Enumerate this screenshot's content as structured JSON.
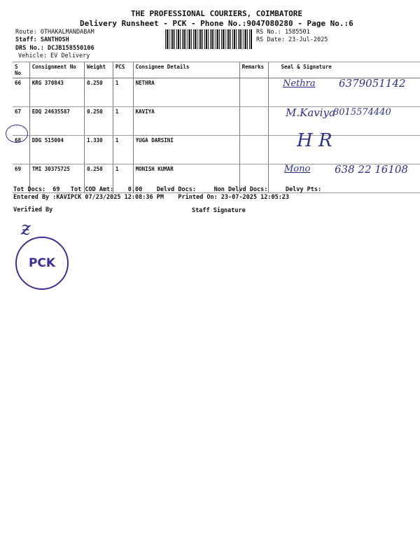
{
  "header": {
    "company": "THE PROFESSIONAL COURIERS, COIMBATORE",
    "title": "Delivery Runsheet - PCK - Phone No.:9047080280 - Page No.:6",
    "route": "Route: OTHAKALMANDABAM",
    "staff": "Staff: SANTHOSH",
    "drs": "DRS No.: DCJB158550106",
    "vehicle": "Vehicle: EV Delivery",
    "rs_no": "RS No.: 1585501",
    "rs_date": "RS Date: 23-Jul-2025"
  },
  "table": {
    "headers": [
      "S No",
      "Consignment No",
      "Weight",
      "PCS",
      "Consignee Details",
      "Remarks",
      "Seal & Signature"
    ],
    "rows": [
      {
        "sno": "66",
        "cn": "KRG 370843",
        "weight": "0.250",
        "pcs": "1",
        "consignee": "NETHRA",
        "remarks": "",
        "sig": "Nethra",
        "phone": "6379051142"
      },
      {
        "sno": "67",
        "cn": "EDQ 24635587",
        "weight": "0.250",
        "pcs": "1",
        "consignee": "KAVIYA",
        "remarks": "",
        "sig": "M.Kaviya",
        "phone": "8015574440"
      },
      {
        "sno": "68",
        "cn": "DDG 515004",
        "weight": "1.330",
        "pcs": "1",
        "consignee": "YUGA DARSINI",
        "remarks": "",
        "sig": "H R",
        "phone": ""
      },
      {
        "sno": "69",
        "cn": "TMI 30375725",
        "weight": "0.250",
        "pcs": "1",
        "consignee": "MONISH KUMAR",
        "remarks": "",
        "sig": "Mono",
        "phone": "638 22 16108"
      }
    ]
  },
  "footer": {
    "totals": "Tot Docs:  69   Tot COD Amt:    0.00    Delvd Docs:     Non Delvd Docs:     Delvy Pts:",
    "entered": "Entered By :KAVIPCK 07/23/2025 12:08:36 PM    Printed On: 23-07-2025 12:05:23",
    "verified": "Verified By",
    "staff_sig": "Staff Signature"
  },
  "stamp": {
    "text": "PCK",
    "color": "#3b2fa0"
  }
}
